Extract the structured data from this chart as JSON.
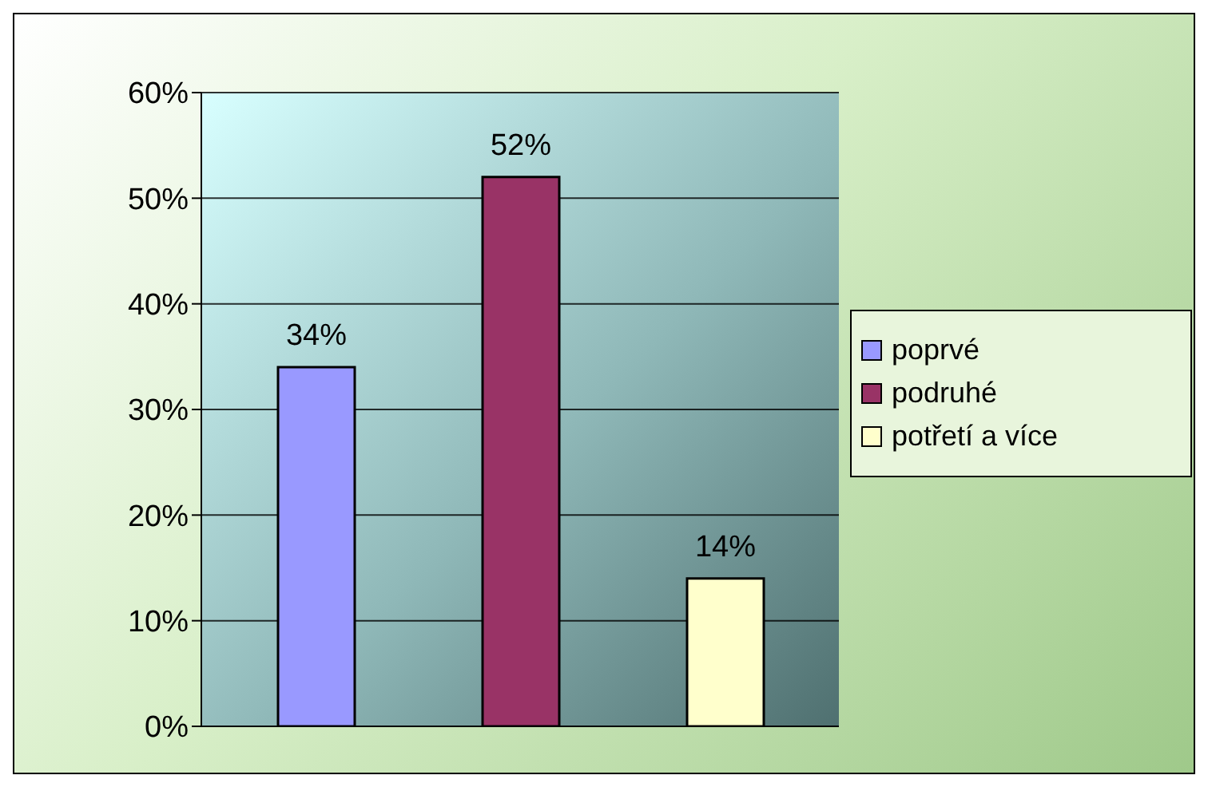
{
  "chart_data": {
    "type": "bar",
    "categories": [
      null
    ],
    "series": [
      {
        "name": "poprvé",
        "color": "#9999ff",
        "values": [
          34
        ],
        "value_labels": [
          "34%"
        ]
      },
      {
        "name": "podruhé",
        "color": "#993366",
        "values": [
          52
        ],
        "value_labels": [
          "52%"
        ]
      },
      {
        "name": "potřetí a více",
        "color": "#ffffcc",
        "values": [
          14
        ],
        "value_labels": [
          "14%"
        ]
      }
    ],
    "ylim": [
      0,
      60
    ],
    "yticks": [
      {
        "value": 0,
        "label": "0%"
      },
      {
        "value": 10,
        "label": "10%"
      },
      {
        "value": 20,
        "label": "20%"
      },
      {
        "value": 30,
        "label": "30%"
      },
      {
        "value": 40,
        "label": "40%"
      },
      {
        "value": 50,
        "label": "50%"
      },
      {
        "value": 60,
        "label": "60%"
      }
    ],
    "grid": "y",
    "legend": "right"
  }
}
